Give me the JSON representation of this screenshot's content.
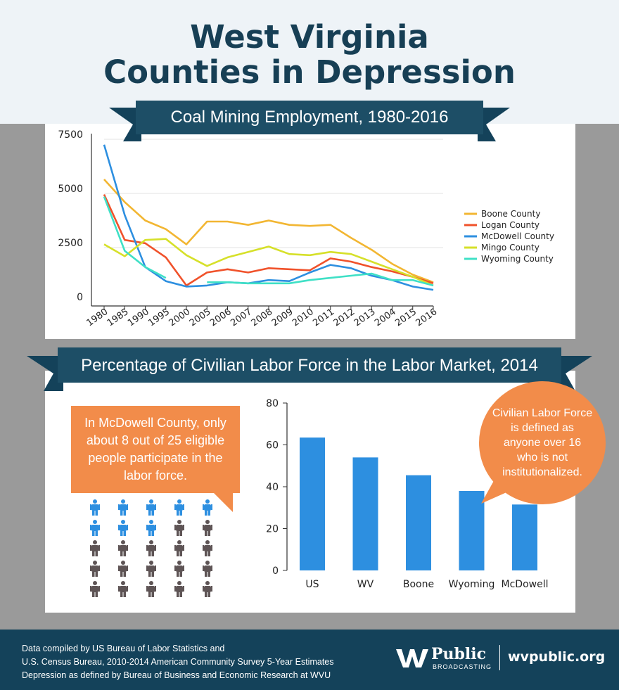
{
  "title": {
    "line1": "West Virginia",
    "line2": "Counties in Depression"
  },
  "chart_data": [
    {
      "type": "line",
      "title": "Coal Mining Employment, 1980-2016",
      "x": [
        "1980",
        "1985",
        "1990",
        "1995",
        "2000",
        "2005",
        "2006",
        "2007",
        "2008",
        "2009",
        "2010",
        "2011",
        "2012",
        "2013",
        "2004",
        "2015",
        "2016"
      ],
      "yticks": [
        0,
        2500,
        5000,
        7500
      ],
      "ylim": [
        0,
        7500
      ],
      "legend_position": "right",
      "grid": true,
      "series": [
        {
          "name": "Boone County",
          "color": "#f2b632",
          "values": [
            5650,
            4600,
            3750,
            3350,
            2650,
            3700,
            3700,
            3550,
            3750,
            3550,
            3500,
            3550,
            2950,
            2400,
            1750,
            1250,
            900
          ]
        },
        {
          "name": "Logan County",
          "color": "#f0522b",
          "values": [
            4950,
            2850,
            2700,
            2050,
            750,
            1350,
            1500,
            1350,
            1550,
            1500,
            1450,
            2000,
            1850,
            1600,
            1400,
            1150,
            850
          ]
        },
        {
          "name": "McDowell County",
          "color": "#2d8fe0",
          "values": [
            7250,
            4000,
            1600,
            950,
            700,
            750,
            900,
            850,
            1000,
            950,
            1350,
            1700,
            1550,
            1200,
            1000,
            700,
            550
          ]
        },
        {
          "name": "Mingo County",
          "color": "#d6e02a",
          "values": [
            2650,
            2100,
            2850,
            2900,
            2150,
            1650,
            2050,
            2300,
            2550,
            2200,
            2150,
            2300,
            2200,
            1850,
            1500,
            1150,
            750
          ]
        },
        {
          "name": "Wyoming County",
          "color": "#3fe0c6",
          "values": [
            4850,
            2350,
            1600,
            1100,
            null,
            900,
            900,
            850,
            850,
            850,
            1000,
            1100,
            1200,
            1300,
            1000,
            1000,
            750
          ]
        }
      ]
    },
    {
      "type": "bar",
      "title": "Percentage of Civilian Labor Force in the Labor Market, 2014",
      "categories": [
        "US",
        "WV",
        "Boone",
        "Wyoming",
        "McDowell"
      ],
      "values": [
        63.5,
        54,
        45.5,
        38,
        31.5
      ],
      "yticks": [
        0,
        20,
        40,
        60,
        80
      ],
      "ylim": [
        0,
        80
      ],
      "color": "#2d8fe0"
    }
  ],
  "callout": {
    "text": "In McDowell County, only about 8 out of 25 eligible people participate in the labor force.",
    "participating": 8,
    "total": 25,
    "colors": {
      "participating": "#2d8fe0",
      "not_participating": "#5e5455"
    }
  },
  "bubble": {
    "text": "Civilian Labor Force is defined as anyone over 16 who is not institutionalized."
  },
  "footer": {
    "notes": [
      "Data compiled by US Bureau of Labor Statistics and",
      "U.S. Census Bureau, 2010-2014 American Community Survey 5-Year Estimates",
      "Depression as defined by Bureau of Business and Economic Research at WVU"
    ],
    "brand_name": "Public",
    "brand_sub": "BROADCASTING",
    "url": "wvpublic.org"
  }
}
